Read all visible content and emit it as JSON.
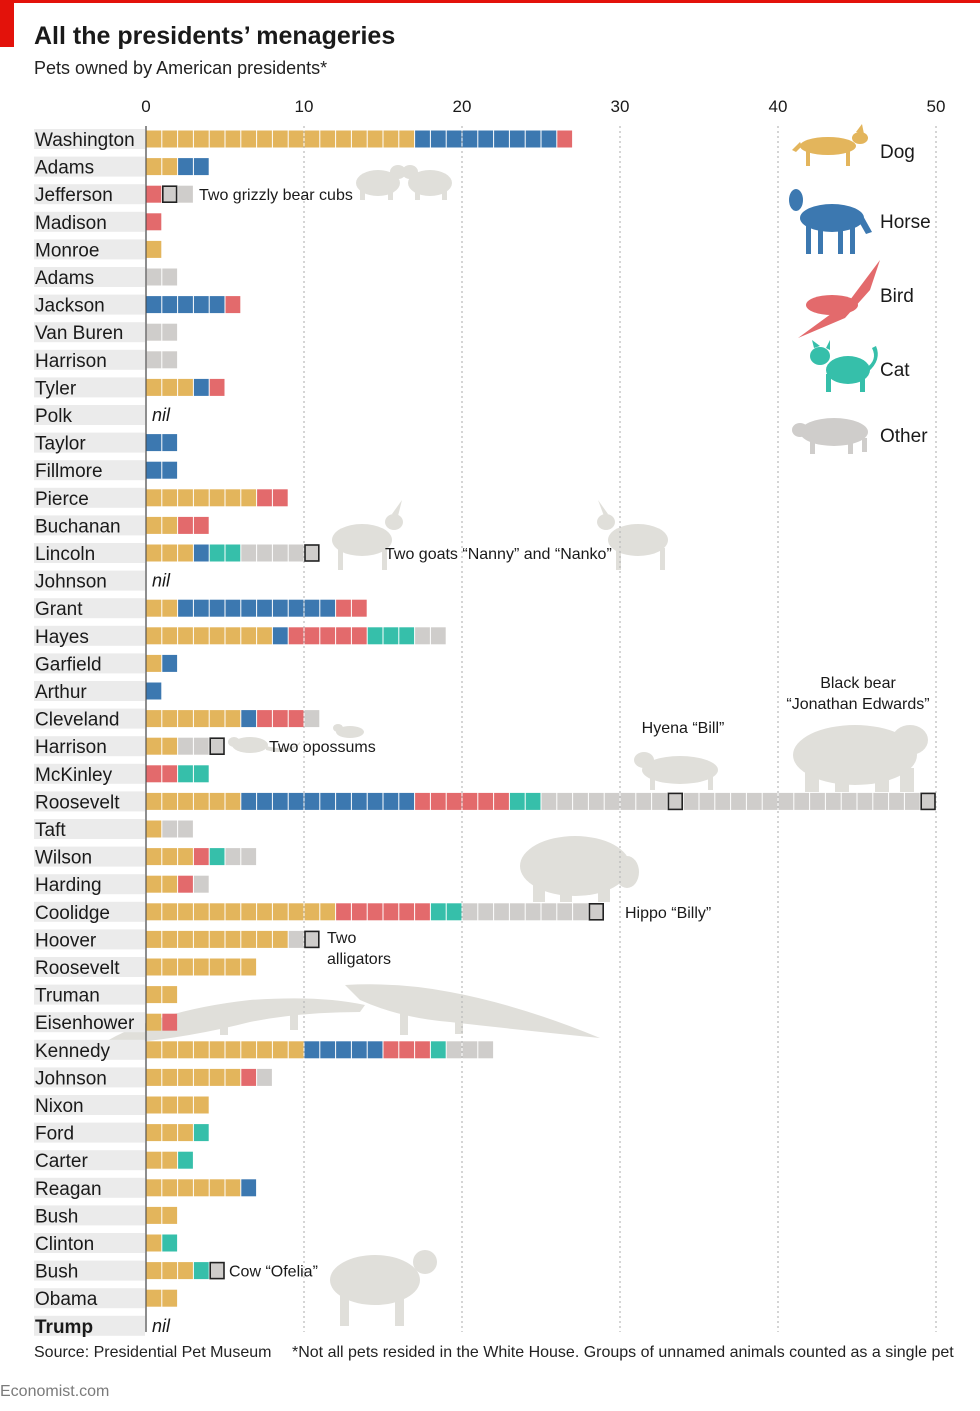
{
  "title": "All the presidents’ menageries",
  "subtitle": "Pets owned by American presidents*",
  "source": "Source: Presidential Pet Museum",
  "footnote": "*Not all pets resided in the White House. Groups of unnamed animals counted as a single pet",
  "brand": "Economist.com",
  "colors": {
    "dog": "#e3b55c",
    "horse": "#3c78b0",
    "bird": "#e36a6c",
    "cat": "#36bfaa",
    "other": "#cfcdcb",
    "silhouette": "#e0dfda",
    "label_bg": "#ebebeb",
    "grid": "#b9b9b9",
    "accent": "#e3120b"
  },
  "chart_data": {
    "type": "bar",
    "stacked": true,
    "xticks": [
      0,
      10,
      20,
      30,
      40,
      50
    ],
    "xlim": [
      0,
      50
    ],
    "grid": true,
    "legend_position": "top-right",
    "series": [
      {
        "key": "dog",
        "name": "Dog",
        "icon": "dog-icon"
      },
      {
        "key": "horse",
        "name": "Horse",
        "icon": "horse-icon"
      },
      {
        "key": "bird",
        "name": "Bird",
        "icon": "bird-icon"
      },
      {
        "key": "cat",
        "name": "Cat",
        "icon": "cat-icon"
      },
      {
        "key": "other",
        "name": "Other",
        "icon": "pig-icon"
      }
    ],
    "presidents": [
      {
        "name": "Washington",
        "dog": 17,
        "horse": 9,
        "bird": 1,
        "cat": 0,
        "other": 0
      },
      {
        "name": "Adams",
        "dog": 2,
        "horse": 2,
        "bird": 0,
        "cat": 0,
        "other": 0
      },
      {
        "name": "Jefferson",
        "dog": 0,
        "horse": 0,
        "bird": 1,
        "cat": 0,
        "other": 2,
        "highlight": [
          2
        ]
      },
      {
        "name": "Madison",
        "dog": 0,
        "horse": 0,
        "bird": 1,
        "cat": 0,
        "other": 0
      },
      {
        "name": "Monroe",
        "dog": 1,
        "horse": 0,
        "bird": 0,
        "cat": 0,
        "other": 0
      },
      {
        "name": "Adams",
        "dog": 0,
        "horse": 0,
        "bird": 0,
        "cat": 0,
        "other": 2
      },
      {
        "name": "Jackson",
        "dog": 0,
        "horse": 5,
        "bird": 1,
        "cat": 0,
        "other": 0
      },
      {
        "name": "Van Buren",
        "dog": 0,
        "horse": 0,
        "bird": 0,
        "cat": 0,
        "other": 2
      },
      {
        "name": "Harrison",
        "dog": 0,
        "horse": 0,
        "bird": 0,
        "cat": 0,
        "other": 2
      },
      {
        "name": "Tyler",
        "dog": 3,
        "horse": 1,
        "bird": 1,
        "cat": 0,
        "other": 0
      },
      {
        "name": "Polk",
        "dog": 0,
        "horse": 0,
        "bird": 0,
        "cat": 0,
        "other": 0,
        "nil": "nil"
      },
      {
        "name": "Taylor",
        "dog": 0,
        "horse": 2,
        "bird": 0,
        "cat": 0,
        "other": 0
      },
      {
        "name": "Fillmore",
        "dog": 0,
        "horse": 2,
        "bird": 0,
        "cat": 0,
        "other": 0
      },
      {
        "name": "Pierce",
        "dog": 7,
        "horse": 0,
        "bird": 2,
        "cat": 0,
        "other": 0
      },
      {
        "name": "Buchanan",
        "dog": 2,
        "horse": 0,
        "bird": 2,
        "cat": 0,
        "other": 0
      },
      {
        "name": "Lincoln",
        "dog": 3,
        "horse": 1,
        "bird": 0,
        "cat": 2,
        "other": 5,
        "highlight": [
          11
        ]
      },
      {
        "name": "Johnson",
        "dog": 0,
        "horse": 0,
        "bird": 0,
        "cat": 0,
        "other": 0,
        "nil": "nil"
      },
      {
        "name": "Grant",
        "dog": 2,
        "horse": 10,
        "bird": 2,
        "cat": 0,
        "other": 0
      },
      {
        "name": "Hayes",
        "dog": 8,
        "horse": 1,
        "bird": 5,
        "cat": 3,
        "other": 2
      },
      {
        "name": "Garfield",
        "dog": 1,
        "horse": 1,
        "bird": 0,
        "cat": 0,
        "other": 0
      },
      {
        "name": "Arthur",
        "dog": 0,
        "horse": 1,
        "bird": 0,
        "cat": 0,
        "other": 0
      },
      {
        "name": "Cleveland",
        "dog": 6,
        "horse": 1,
        "bird": 3,
        "cat": 0,
        "other": 1
      },
      {
        "name": "Harrison",
        "dog": 2,
        "horse": 0,
        "bird": 0,
        "cat": 0,
        "other": 3,
        "highlight": [
          5
        ]
      },
      {
        "name": "McKinley",
        "dog": 0,
        "horse": 0,
        "bird": 2,
        "cat": 2,
        "other": 0
      },
      {
        "name": "Roosevelt",
        "dog": 6,
        "horse": 11,
        "bird": 6,
        "cat": 2,
        "other": 25,
        "highlight": [
          34,
          50
        ]
      },
      {
        "name": "Taft",
        "dog": 1,
        "horse": 0,
        "bird": 0,
        "cat": 0,
        "other": 2
      },
      {
        "name": "Wilson",
        "dog": 3,
        "horse": 0,
        "bird": 1,
        "cat": 1,
        "other": 2
      },
      {
        "name": "Harding",
        "dog": 2,
        "horse": 0,
        "bird": 1,
        "cat": 0,
        "other": 1
      },
      {
        "name": "Coolidge",
        "dog": 12,
        "horse": 0,
        "bird": 6,
        "cat": 2,
        "other": 9,
        "highlight": [
          29
        ]
      },
      {
        "name": "Hoover",
        "dog": 9,
        "horse": 0,
        "bird": 0,
        "cat": 0,
        "other": 2,
        "highlight": [
          11
        ]
      },
      {
        "name": "Roosevelt",
        "dog": 7,
        "horse": 0,
        "bird": 0,
        "cat": 0,
        "other": 0
      },
      {
        "name": "Truman",
        "dog": 2,
        "horse": 0,
        "bird": 0,
        "cat": 0,
        "other": 0
      },
      {
        "name": "Eisenhower",
        "dog": 1,
        "horse": 0,
        "bird": 1,
        "cat": 0,
        "other": 0
      },
      {
        "name": "Kennedy",
        "dog": 10,
        "horse": 5,
        "bird": 3,
        "cat": 1,
        "other": 3
      },
      {
        "name": "Johnson",
        "dog": 6,
        "horse": 0,
        "bird": 1,
        "cat": 0,
        "other": 1
      },
      {
        "name": "Nixon",
        "dog": 4,
        "horse": 0,
        "bird": 0,
        "cat": 0,
        "other": 0
      },
      {
        "name": "Ford",
        "dog": 3,
        "horse": 0,
        "bird": 0,
        "cat": 1,
        "other": 0
      },
      {
        "name": "Carter",
        "dog": 2,
        "horse": 0,
        "bird": 0,
        "cat": 1,
        "other": 0
      },
      {
        "name": "Reagan",
        "dog": 6,
        "horse": 1,
        "bird": 0,
        "cat": 0,
        "other": 0
      },
      {
        "name": "Bush",
        "dog": 2,
        "horse": 0,
        "bird": 0,
        "cat": 0,
        "other": 0
      },
      {
        "name": "Clinton",
        "dog": 1,
        "horse": 0,
        "bird": 0,
        "cat": 1,
        "other": 0
      },
      {
        "name": "Bush",
        "dog": 3,
        "horse": 0,
        "bird": 0,
        "cat": 1,
        "other": 1,
        "highlight": [
          5
        ]
      },
      {
        "name": "Obama",
        "dog": 2,
        "horse": 0,
        "bird": 0,
        "cat": 0,
        "other": 0
      },
      {
        "name": "Trump",
        "dog": 0,
        "horse": 0,
        "bird": 0,
        "cat": 0,
        "other": 0,
        "nil": "nil",
        "bold": true
      }
    ],
    "annotations": [
      {
        "id": "jefferson",
        "lines": [
          "Two grizzly bear cubs"
        ],
        "row": 2
      },
      {
        "id": "lincoln",
        "lines": [
          "Two goats “Nanny” and “Nanko”"
        ],
        "row": 15
      },
      {
        "id": "harrison",
        "lines": [
          "Two opossums"
        ],
        "row": 22
      },
      {
        "id": "hyena",
        "lines": [
          "Hyena “Bill”"
        ],
        "row": 24
      },
      {
        "id": "bear",
        "lines": [
          "Black bear",
          "“Jonathan Edwards”"
        ],
        "row": 24
      },
      {
        "id": "hippo",
        "lines": [
          "Hippo “Billy”"
        ],
        "row": 28
      },
      {
        "id": "alligators",
        "lines": [
          "Two",
          "alligators"
        ],
        "row": 29
      },
      {
        "id": "cow",
        "lines": [
          "Cow “Ofelia”"
        ],
        "row": 41
      }
    ]
  }
}
